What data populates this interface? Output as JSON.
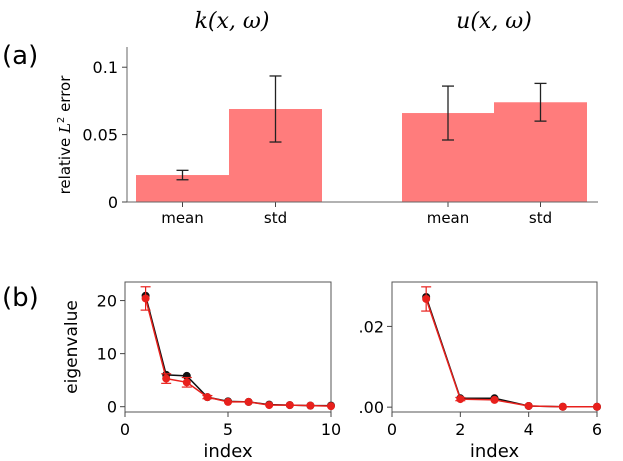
{
  "colors": {
    "bar": "#ff7c7c",
    "black_series": "#111111",
    "red_series": "#e8201c",
    "error": "#222222"
  },
  "chart_data": [
    {
      "id": "a",
      "panel_label": "(a)",
      "type": "bar",
      "ylabel": "relative L² error",
      "ylim": [
        0,
        0.115
      ],
      "yticks": [
        0,
        0.05,
        0.1
      ],
      "ytick_labels": [
        "0",
        "0.05",
        "0.1"
      ],
      "groups": [
        {
          "title": "k(x, ω)",
          "categories": [
            "mean",
            "std"
          ],
          "values": [
            0.02,
            0.069
          ],
          "errors": [
            0.0035,
            0.0245
          ]
        },
        {
          "title": "u(x, ω)",
          "categories": [
            "mean",
            "std"
          ],
          "values": [
            0.066,
            0.074
          ],
          "errors": [
            0.02,
            0.014
          ]
        }
      ]
    },
    {
      "id": "b1",
      "panel_label": "(b)",
      "type": "line",
      "xlabel": "index",
      "ylabel": "eigenvalue",
      "xlim": [
        0,
        10
      ],
      "ylim": [
        -1,
        23.5
      ],
      "xticks": [
        0,
        5,
        10
      ],
      "xtick_labels": [
        "0",
        "5",
        "10"
      ],
      "yticks": [
        0,
        10,
        20
      ],
      "ytick_labels": [
        "0",
        "10",
        "20"
      ],
      "series": [
        {
          "name": "black",
          "x": [
            1,
            2,
            3,
            4,
            5,
            6,
            7,
            8,
            9,
            10
          ],
          "y": [
            20.9,
            6.0,
            5.8,
            1.8,
            1.0,
            0.9,
            0.4,
            0.3,
            0.2,
            0.2
          ]
        },
        {
          "name": "red",
          "x": [
            1,
            2,
            3,
            4,
            5,
            6,
            7,
            8,
            9,
            10
          ],
          "y": [
            20.4,
            5.3,
            4.6,
            1.8,
            0.9,
            0.9,
            0.3,
            0.3,
            0.2,
            0.1
          ],
          "errors": [
            2.2,
            0.9,
            0.9,
            0.3,
            0.2,
            0.1,
            0.1,
            0.1,
            0.05,
            0.05
          ]
        }
      ]
    },
    {
      "id": "b2",
      "panel_label": "",
      "type": "line",
      "xlabel": "index",
      "ylabel": "",
      "xlim": [
        0,
        6
      ],
      "ylim": [
        -0.0012,
        0.031
      ],
      "xticks": [
        0,
        2,
        4,
        6
      ],
      "xtick_labels": [
        "0",
        "2",
        "4",
        "6"
      ],
      "yticks": [
        0,
        0.02
      ],
      "ytick_labels": [
        ".00",
        ".02"
      ],
      "series": [
        {
          "name": "black",
          "x": [
            1,
            2,
            3,
            4,
            5,
            6
          ],
          "y": [
            0.0273,
            0.0022,
            0.0022,
            0.0003,
            0.0001,
            0.0001
          ]
        },
        {
          "name": "red",
          "x": [
            1,
            2,
            3,
            4,
            5,
            6
          ],
          "y": [
            0.0268,
            0.002,
            0.0018,
            0.0003,
            0.0001,
            0.0001
          ],
          "errors": [
            0.003,
            0.0004,
            0.0003,
            0.0001,
            5e-05,
            5e-05
          ]
        }
      ]
    }
  ]
}
